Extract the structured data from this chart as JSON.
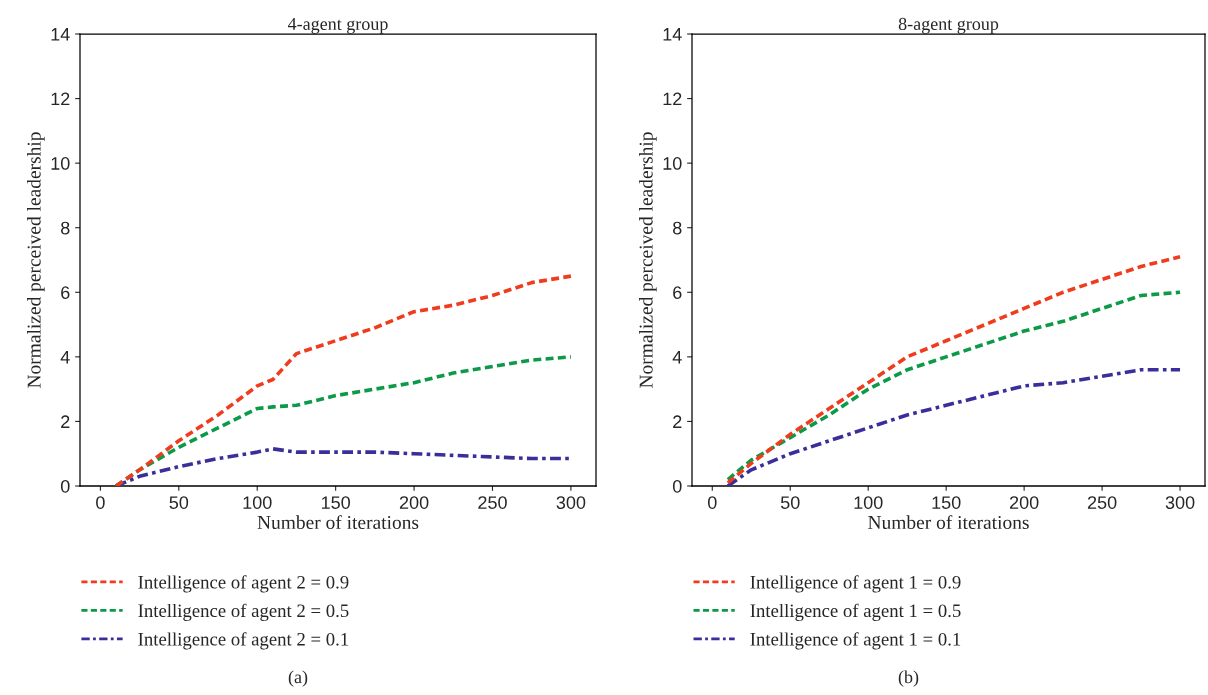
{
  "chart_data": [
    {
      "type": "line",
      "title": "4-agent group",
      "xlabel": "Number of iterations",
      "ylabel": "Normalized perceived leadership",
      "xlim": [
        -13,
        316
      ],
      "ylim": [
        0,
        14
      ],
      "xticks": [
        0,
        50,
        100,
        150,
        200,
        250,
        300
      ],
      "yticks": [
        0,
        2,
        4,
        6,
        8,
        10,
        12,
        14
      ],
      "grid": false,
      "legend": "bottom",
      "annotations": [
        "(a)"
      ],
      "x": [
        10,
        25,
        50,
        75,
        100,
        110,
        125,
        150,
        175,
        200,
        225,
        250,
        275,
        300
      ],
      "series": [
        {
          "name": "Intelligence of agent 2 = 0.9",
          "color": "#f03c1e",
          "line_style": "dashed",
          "values": [
            0,
            0.5,
            1.4,
            2.2,
            3.1,
            3.3,
            4.1,
            4.5,
            4.9,
            5.4,
            5.6,
            5.9,
            6.3,
            6.5
          ]
        },
        {
          "name": "Intelligence of agent 2 = 0.5",
          "color": "#0c9a48",
          "line_style": "dashed",
          "values": [
            0,
            0.5,
            1.2,
            1.8,
            2.4,
            2.45,
            2.5,
            2.8,
            3.0,
            3.2,
            3.5,
            3.7,
            3.9,
            4.0
          ]
        },
        {
          "name": "Intelligence of agent 2 = 0.1",
          "color": "#3a2f9a",
          "line_style": "dashdot",
          "values": [
            0,
            0.3,
            0.6,
            0.85,
            1.05,
            1.15,
            1.05,
            1.05,
            1.05,
            1.0,
            0.95,
            0.9,
            0.85,
            0.85
          ]
        }
      ]
    },
    {
      "type": "line",
      "title": "8-agent group",
      "xlabel": "Number of iterations",
      "ylabel": "Normalized perceived leadership",
      "xlim": [
        -13,
        316
      ],
      "ylim": [
        0,
        14
      ],
      "xticks": [
        0,
        50,
        100,
        150,
        200,
        250,
        300
      ],
      "yticks": [
        0,
        2,
        4,
        6,
        8,
        10,
        12,
        14
      ],
      "grid": false,
      "legend": "bottom",
      "annotations": [
        "(b)"
      ],
      "x": [
        10,
        25,
        50,
        75,
        100,
        125,
        150,
        175,
        200,
        225,
        250,
        275,
        300
      ],
      "series": [
        {
          "name": "Intelligence of agent 1 = 0.9",
          "color": "#f03c1e",
          "line_style": "dashed",
          "values": [
            0.1,
            0.7,
            1.6,
            2.4,
            3.2,
            4.0,
            4.5,
            5.0,
            5.5,
            6.0,
            6.4,
            6.8,
            7.1
          ]
        },
        {
          "name": "Intelligence of agent 1 = 0.5",
          "color": "#0c9a48",
          "line_style": "dashed",
          "values": [
            0.2,
            0.8,
            1.5,
            2.2,
            3.0,
            3.6,
            4.0,
            4.4,
            4.8,
            5.1,
            5.5,
            5.9,
            6.0
          ]
        },
        {
          "name": "Intelligence of agent 1 = 0.1",
          "color": "#3a2f9a",
          "line_style": "dashdot",
          "values": [
            0,
            0.5,
            1.0,
            1.4,
            1.8,
            2.2,
            2.5,
            2.8,
            3.1,
            3.2,
            3.4,
            3.6,
            3.6
          ]
        }
      ]
    }
  ]
}
